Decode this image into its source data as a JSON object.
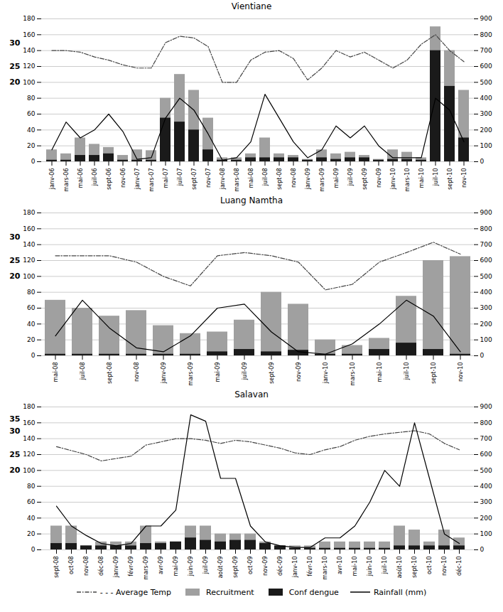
{
  "chart_data": [
    {
      "type": "bar",
      "title": "Vientiane",
      "categories": [
        "janv-06",
        "mars-06",
        "mai-06",
        "juil-06",
        "sept-06",
        "nov-06",
        "janv-07",
        "mars-07",
        "mai-07",
        "juil-07",
        "sept-07",
        "nov-07",
        "janv-08",
        "mars-08",
        "mai-08",
        "juil-08",
        "sept-08",
        "nov-08",
        "janv-09",
        "mars-09",
        "mai-09",
        "juil-09",
        "sept-09",
        "nov-09",
        "janv-10",
        "mars-10",
        "mai-10",
        "juil-10",
        "sept-10",
        "nov-10"
      ],
      "series": [
        {
          "name": "- - - Average Temp",
          "type": "line",
          "color": "#444444",
          "line_style": "dashdot",
          "values": [
            140,
            140,
            138,
            132,
            128,
            122,
            118,
            118,
            150,
            158,
            156,
            145,
            100,
            100,
            128,
            138,
            140,
            130,
            103,
            118,
            140,
            132,
            138,
            128,
            118,
            128,
            148,
            160,
            140,
            126
          ]
        },
        {
          "name": "Recruitment",
          "type": "bar",
          "color": "#a0a0a0",
          "values": [
            15,
            10,
            30,
            22,
            18,
            8,
            15,
            14,
            80,
            110,
            90,
            55,
            5,
            5,
            10,
            30,
            10,
            8,
            3,
            15,
            10,
            12,
            8,
            3,
            15,
            12,
            5,
            170,
            140,
            90
          ]
        },
        {
          "name": "Conf dengue",
          "type": "bar",
          "color": "#1a1a1a",
          "values": [
            2,
            2,
            8,
            8,
            10,
            2,
            2,
            2,
            55,
            50,
            40,
            15,
            2,
            2,
            5,
            5,
            5,
            5,
            2,
            5,
            3,
            5,
            5,
            2,
            3,
            3,
            2,
            140,
            95,
            30
          ]
        },
        {
          "name": "Rainfall (mm)",
          "type": "line",
          "color": "#000000",
          "line_style": "solid",
          "axis": "y2",
          "values": [
            75,
            250,
            150,
            200,
            300,
            190,
            15,
            25,
            275,
            400,
            325,
            175,
            10,
            25,
            125,
            425,
            275,
            125,
            25,
            75,
            225,
            150,
            225,
            100,
            25,
            25,
            25,
            400,
            325,
            125
          ]
        }
      ],
      "ylim": [
        0,
        180
      ],
      "yticks": [
        0,
        20,
        40,
        60,
        80,
        100,
        120,
        140,
        160,
        180
      ],
      "y2lim": [
        0,
        900
      ],
      "y2ticks": [
        0,
        100,
        200,
        300,
        400,
        500,
        600,
        700,
        800,
        900
      ],
      "grid": true,
      "stacked": false,
      "annotations": [
        {
          "text": "20",
          "y": 100
        },
        {
          "text": "25",
          "y": 120
        },
        {
          "text": "30",
          "y": 150
        }
      ]
    },
    {
      "type": "bar",
      "title": "Luang Namtha",
      "categories": [
        "mai-08",
        "juil-08",
        "sept-08",
        "nov-08",
        "janv-09",
        "mars-09",
        "mai-09",
        "juil-09",
        "sept-09",
        "nov-09",
        "janv-10",
        "mars-10",
        "mai-10",
        "juil-10",
        "sept-10",
        "nov-10"
      ],
      "series": [
        {
          "name": "- - - Average Temp",
          "type": "line",
          "color": "#444444",
          "line_style": "dashdot",
          "values": [
            126,
            126,
            126,
            118,
            100,
            88,
            126,
            130,
            126,
            118,
            83,
            90,
            118,
            130,
            143,
            128
          ]
        },
        {
          "name": "Recruitment",
          "type": "bar",
          "color": "#a0a0a0",
          "values": [
            70,
            60,
            50,
            57,
            38,
            28,
            30,
            45,
            80,
            65,
            20,
            13,
            22,
            75,
            120,
            125
          ]
        },
        {
          "name": "Conf dengue",
          "type": "bar",
          "color": "#1a1a1a",
          "values": [
            2,
            2,
            2,
            2,
            2,
            2,
            5,
            8,
            5,
            7,
            2,
            2,
            8,
            16,
            8,
            2
          ]
        },
        {
          "name": "Rainfall (mm)",
          "type": "line",
          "color": "#000000",
          "line_style": "solid",
          "axis": "y2",
          "values": [
            125,
            350,
            175,
            50,
            25,
            125,
            300,
            325,
            150,
            25,
            10,
            75,
            200,
            350,
            250,
            25
          ]
        }
      ],
      "ylim": [
        0,
        180
      ],
      "yticks": [
        0,
        20,
        40,
        60,
        80,
        100,
        120,
        140,
        160,
        180
      ],
      "y2lim": [
        0,
        900
      ],
      "y2ticks": [
        0,
        100,
        200,
        300,
        400,
        500,
        600,
        700,
        800,
        900
      ],
      "grid": true,
      "stacked": false,
      "annotations": [
        {
          "text": "20",
          "y": 100
        },
        {
          "text": "25",
          "y": 120
        },
        {
          "text": "30",
          "y": 150
        }
      ]
    },
    {
      "type": "bar",
      "title": "Salavan",
      "categories": [
        "sept-08",
        "oct-08",
        "nov-08",
        "déc-08",
        "janv-09",
        "févr-09",
        "mars-09",
        "avr-09",
        "mai-09",
        "juin-09",
        "juil-09",
        "août-09",
        "sept-09",
        "oct-09",
        "nov-09",
        "déc-09",
        "janv-10",
        "févr-10",
        "mars-10",
        "avr-10",
        "mai-10",
        "juin-10",
        "juil-10",
        "août-10",
        "sept-10",
        "oct-10",
        "nov-10",
        "déc-10"
      ],
      "series": [
        {
          "name": "- - - Average Temp",
          "type": "line",
          "color": "#444444",
          "line_style": "dashdot",
          "values": [
            130,
            125,
            120,
            112,
            115,
            118,
            132,
            136,
            140,
            140,
            138,
            134,
            138,
            136,
            132,
            128,
            122,
            120,
            126,
            130,
            138,
            143,
            146,
            148,
            150,
            146,
            134,
            126
          ]
        },
        {
          "name": "Recruitment",
          "type": "bar",
          "color": "#a0a0a0",
          "values": [
            30,
            30,
            5,
            10,
            10,
            10,
            30,
            10,
            10,
            30,
            30,
            20,
            20,
            20,
            10,
            5,
            5,
            5,
            10,
            10,
            10,
            10,
            10,
            30,
            25,
            10,
            25,
            15
          ]
        },
        {
          "name": "Conf dengue",
          "type": "bar",
          "color": "#1a1a1a",
          "values": [
            8,
            8,
            5,
            5,
            5,
            5,
            8,
            8,
            10,
            15,
            12,
            10,
            12,
            12,
            8,
            5,
            2,
            2,
            2,
            2,
            2,
            2,
            2,
            5,
            5,
            5,
            5,
            5
          ]
        },
        {
          "name": "Rainfall (mm)",
          "type": "line",
          "color": "#000000",
          "line_style": "solid",
          "axis": "y2",
          "values": [
            275,
            150,
            90,
            40,
            25,
            40,
            150,
            150,
            250,
            850,
            810,
            450,
            450,
            150,
            50,
            25,
            15,
            15,
            75,
            75,
            150,
            300,
            500,
            400,
            800,
            450,
            100,
            40
          ]
        }
      ],
      "ylim": [
        0,
        180
      ],
      "yticks": [
        0,
        20,
        40,
        60,
        80,
        100,
        120,
        140,
        160,
        180
      ],
      "y2lim": [
        0,
        900
      ],
      "y2ticks": [
        0,
        100,
        200,
        300,
        400,
        500,
        600,
        700,
        800,
        900
      ],
      "grid": true,
      "stacked": false,
      "legend": "bottom",
      "annotations": [
        {
          "text": "20",
          "y": 100
        },
        {
          "text": "25",
          "y": 120
        },
        {
          "text": "30",
          "y": 150
        },
        {
          "text": "35",
          "y": 165
        }
      ]
    }
  ]
}
